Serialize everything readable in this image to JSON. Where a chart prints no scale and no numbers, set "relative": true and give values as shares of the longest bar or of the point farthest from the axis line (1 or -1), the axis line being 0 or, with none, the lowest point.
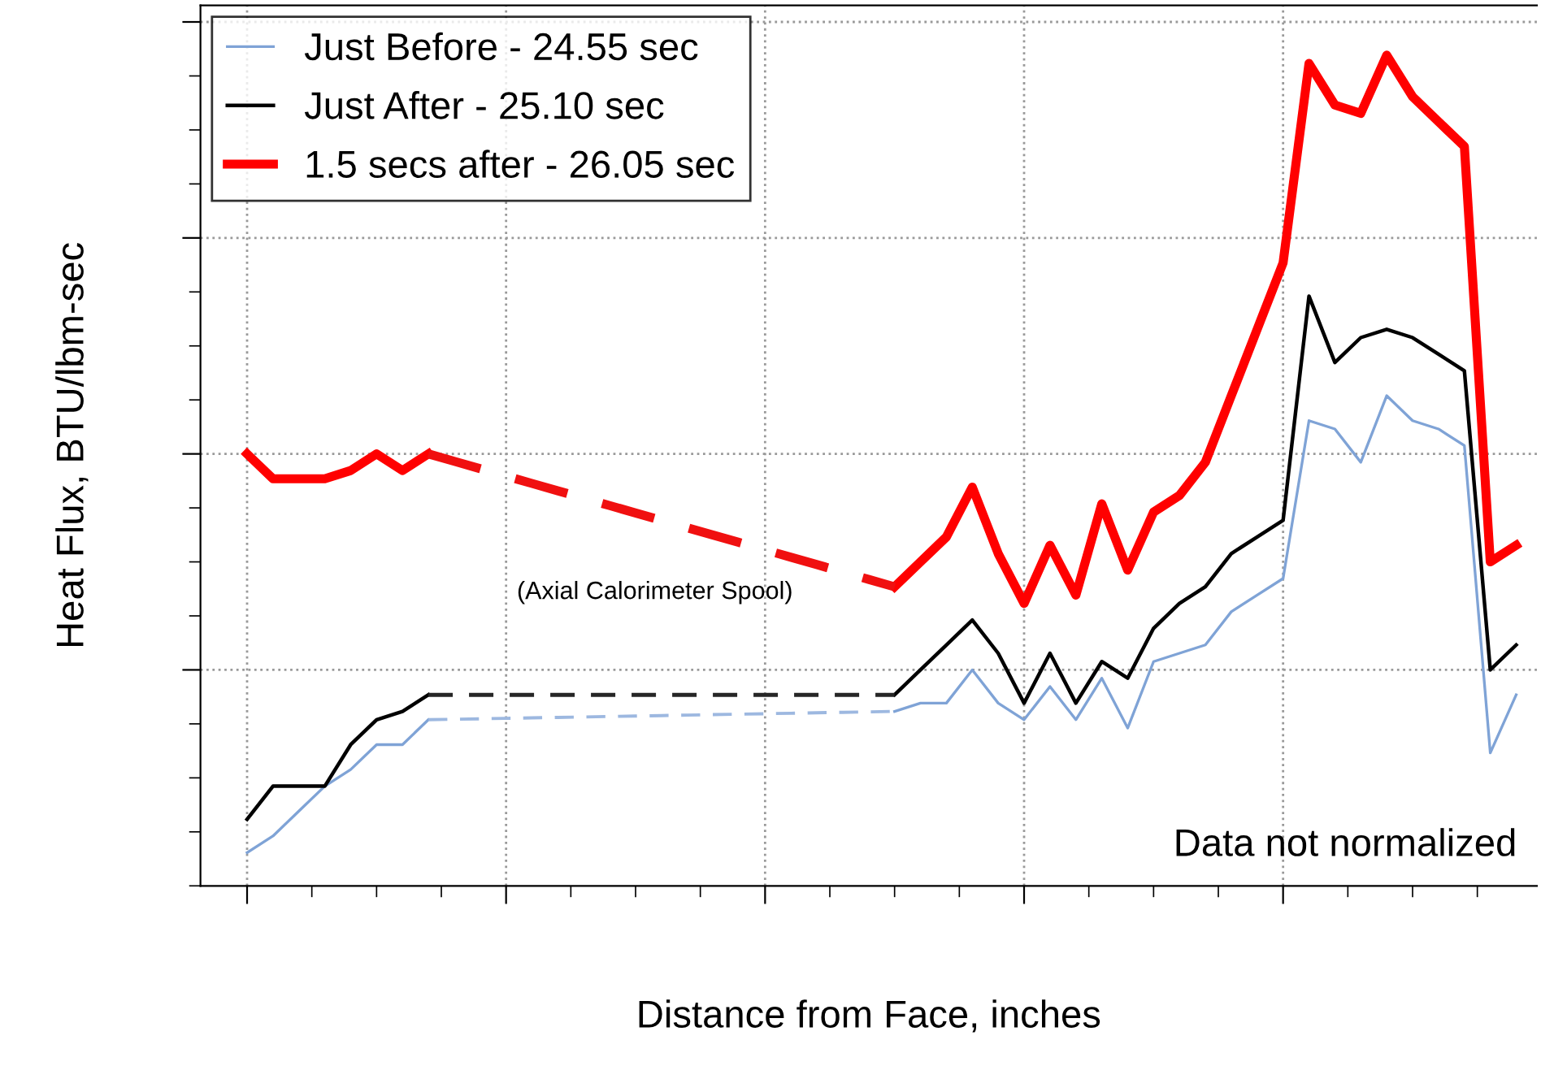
{
  "chart_data": {
    "type": "line",
    "relative": true,
    "xlabel": "Distance from Face, inches",
    "ylabel": "Heat Flux, BTU/lbm-sec",
    "categories": [
      null,
      null,
      null,
      null,
      null,
      null,
      null,
      null,
      null,
      null,
      null,
      null,
      null,
      null,
      null,
      null,
      null,
      null,
      null,
      null,
      null,
      null,
      null,
      null,
      null,
      null,
      null,
      null,
      null,
      null,
      null,
      null,
      null,
      null,
      null,
      null,
      null,
      null,
      null,
      null,
      null,
      null,
      null,
      null,
      null,
      null,
      null,
      null,
      null,
      null
    ],
    "series": [
      {
        "name": "Just Before - 24.55 sec",
        "color": "#7fa3d6",
        "values": [
          0.04,
          0.06,
          0.09,
          0.12,
          0.14,
          0.17,
          0.17,
          0.2,
          null,
          null,
          null,
          null,
          null,
          null,
          null,
          null,
          null,
          null,
          null,
          null,
          null,
          null,
          null,
          null,
          null,
          0.21,
          0.22,
          0.22,
          0.26,
          0.22,
          0.2,
          0.24,
          0.2,
          0.25,
          0.19,
          0.27,
          0.28,
          0.29,
          0.33,
          0.35,
          0.37,
          0.56,
          0.55,
          0.51,
          0.59,
          0.56,
          0.55,
          0.53,
          0.16,
          0.23
        ]
      },
      {
        "name": "Just After - 25.10 sec",
        "color": "#000000",
        "values": [
          0.08,
          0.12,
          0.12,
          0.12,
          0.17,
          0.2,
          0.21,
          0.23,
          null,
          null,
          null,
          null,
          null,
          null,
          null,
          null,
          null,
          null,
          null,
          null,
          null,
          null,
          null,
          null,
          null,
          0.23,
          0.26,
          0.29,
          0.32,
          0.28,
          0.22,
          0.28,
          0.22,
          0.27,
          0.25,
          0.31,
          0.34,
          0.36,
          0.4,
          0.42,
          0.44,
          0.71,
          0.63,
          0.66,
          0.67,
          0.66,
          0.64,
          0.62,
          0.26,
          0.29
        ]
      },
      {
        "name": "1.5 secs after - 26.05 sec",
        "color": "#ff0000",
        "values": [
          0.52,
          0.49,
          0.49,
          0.49,
          0.5,
          0.52,
          0.5,
          0.52,
          null,
          null,
          null,
          null,
          null,
          null,
          null,
          null,
          null,
          null,
          null,
          null,
          null,
          null,
          null,
          null,
          null,
          0.36,
          0.39,
          0.42,
          0.48,
          0.4,
          0.34,
          0.41,
          0.35,
          0.46,
          0.38,
          0.45,
          0.47,
          0.51,
          0.59,
          0.67,
          0.75,
          0.99,
          0.94,
          0.93,
          1.0,
          0.95,
          0.92,
          0.89,
          0.39,
          0.41
        ]
      },
      {
        "color": "#9db8e0",
        "line_style": "dashed",
        "values": [
          null,
          null,
          null,
          null,
          null,
          null,
          null,
          0.2,
          null,
          null,
          null,
          null,
          null,
          null,
          null,
          null,
          null,
          null,
          null,
          null,
          null,
          null,
          null,
          null,
          null,
          0.21,
          null,
          null,
          null,
          null,
          null,
          null,
          null,
          null,
          null,
          null,
          null,
          null,
          null,
          null,
          null,
          null,
          null,
          null,
          null,
          null,
          null,
          null,
          null,
          null
        ]
      },
      {
        "color": "#262626",
        "line_style": "dashed",
        "values": [
          null,
          null,
          null,
          null,
          null,
          null,
          null,
          0.23,
          null,
          null,
          null,
          null,
          null,
          null,
          null,
          null,
          null,
          null,
          null,
          null,
          null,
          null,
          null,
          null,
          null,
          0.23,
          null,
          null,
          null,
          null,
          null,
          null,
          null,
          null,
          null,
          null,
          null,
          null,
          null,
          null,
          null,
          null,
          null,
          null,
          null,
          null,
          null,
          null,
          null,
          null
        ]
      },
      {
        "color": "#f01010",
        "line_style": "dashed",
        "values": [
          null,
          null,
          null,
          null,
          null,
          null,
          null,
          0.52,
          null,
          null,
          null,
          null,
          null,
          null,
          null,
          null,
          null,
          null,
          null,
          null,
          null,
          null,
          null,
          null,
          null,
          0.36,
          null,
          null,
          null,
          null,
          null,
          null,
          null,
          null,
          null,
          null,
          null,
          null,
          null,
          null,
          null,
          null,
          null,
          null,
          null,
          null,
          null,
          null,
          null,
          null
        ]
      }
    ],
    "annotations": [
      "(Axial Calorimeter Spool)",
      "Data not normalized"
    ],
    "grid": true,
    "legend": "top left",
    "tick_labels": false,
    "marker": "none",
    "line_style": "solid"
  }
}
